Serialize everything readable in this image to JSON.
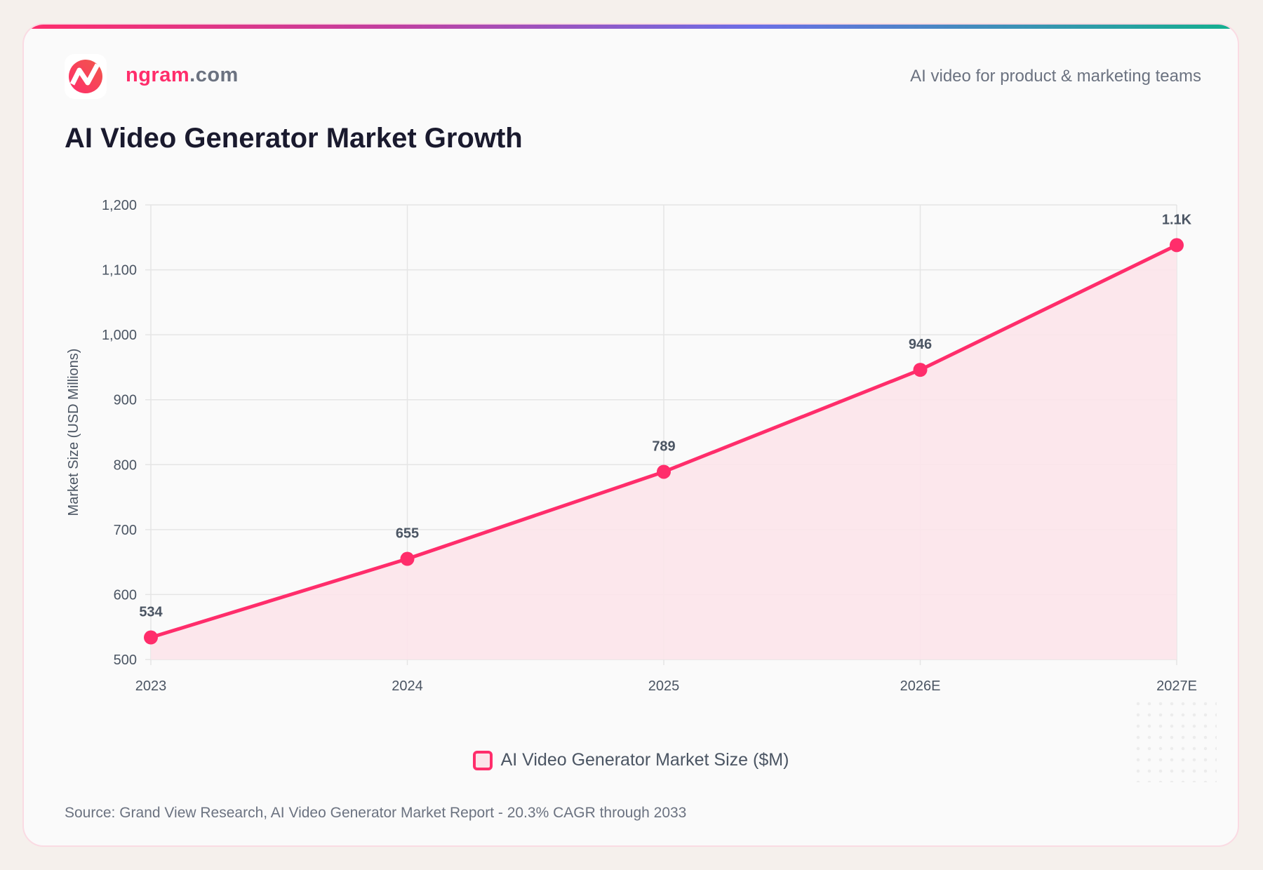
{
  "header": {
    "brand_name": "ngram",
    "brand_tld": ".com",
    "tagline": "AI video for product & marketing teams"
  },
  "title": "AI Video Generator Market Growth",
  "source": "Source: Grand View Research, AI Video Generator Market Report - 20.3% CAGR through 2033",
  "colors": {
    "accent": "#ff2d6b",
    "fill": "#fce4ea",
    "grid": "#e5e5e5"
  },
  "chart_data": {
    "type": "area",
    "categories": [
      "2023",
      "2024",
      "2025",
      "2026E",
      "2027E"
    ],
    "series": [
      {
        "name": "AI Video Generator Market Size ($M)",
        "values": [
          534,
          655,
          789,
          946,
          1138
        ],
        "labels": [
          "534",
          "655",
          "789",
          "946",
          "1.1K"
        ]
      }
    ],
    "ylabel": "Market Size (USD Millions)",
    "ylim": [
      500,
      1200
    ],
    "yticks": [
      "500",
      "600",
      "700",
      "800",
      "900",
      "1,000",
      "1,100",
      "1,200"
    ],
    "grid": true,
    "legend": "bottom"
  }
}
